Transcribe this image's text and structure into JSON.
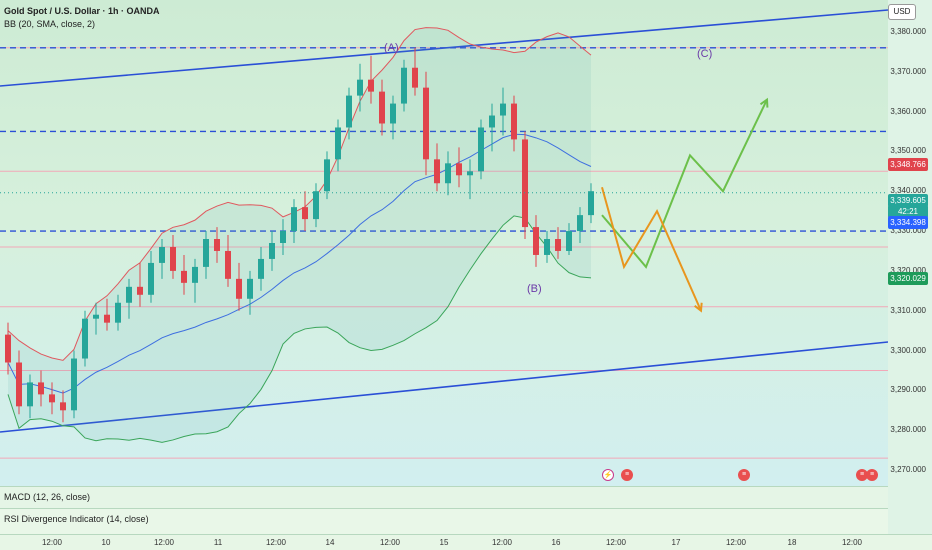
{
  "header": {
    "title": "Gold Spot / U.S. Dollar · 1h · OANDA",
    "indicator": "BB (20, SMA, close, 2)"
  },
  "currency_button": "USD",
  "price_axis": [
    "3,380.000",
    "3,370.000",
    "3,360.000",
    "3,350.000",
    "3,340.000",
    "3,330.000",
    "3,320.000",
    "3,310.000",
    "3,300.000",
    "3,290.000",
    "3,280.000",
    "3,270.000"
  ],
  "price_tags": {
    "upper": {
      "label": "3,348.766",
      "color": "#e0444c"
    },
    "last": {
      "label": "3,339.605",
      "color": "#26a69a"
    },
    "countdown": {
      "label": "42:21",
      "color": "#26a69a"
    },
    "basis": {
      "label": "3,334.398",
      "color": "#2962ff"
    },
    "lower": {
      "label": "3,320.029",
      "color": "#1e9b5a"
    }
  },
  "wave_labels": {
    "a": "(A)",
    "b": "(B)",
    "c": "(C)"
  },
  "panes": {
    "macd": "MACD (12, 26, close)",
    "rsi": "RSI Divergence Indicator (14, close)"
  },
  "time_axis": [
    "12:00",
    "10",
    "12:00",
    "11",
    "12:00",
    "14",
    "12:00",
    "15",
    "12:00",
    "16",
    "12:00",
    "17",
    "12:00",
    "18",
    "12:00"
  ],
  "colors": {
    "up": "#26a69a",
    "down": "#e0444c",
    "channel": "#2a4fd6",
    "bb_upper": "#e0585e",
    "bb_basis": "#3e6fe0",
    "bb_lower": "#3aa55a",
    "proj_green": "#6cc04a",
    "proj_orange": "#e8961e"
  },
  "chart_data": {
    "type": "candlestick",
    "ylim": [
      3266,
      3388
    ],
    "levels": {
      "dashed_blue": [
        3376,
        3355,
        3330
      ],
      "pink_lines": [
        3376,
        3345,
        3326,
        3311,
        3295,
        3273
      ]
    },
    "candles": [
      [
        3304,
        3307,
        3294,
        3297
      ],
      [
        3297,
        3300,
        3284,
        3286
      ],
      [
        3286,
        3294,
        3283,
        3292
      ],
      [
        3292,
        3295,
        3286,
        3289
      ],
      [
        3289,
        3292,
        3284,
        3287
      ],
      [
        3287,
        3290,
        3282,
        3285
      ],
      [
        3285,
        3300,
        3283,
        3298
      ],
      [
        3298,
        3310,
        3296,
        3308
      ],
      [
        3308,
        3312,
        3304,
        3309
      ],
      [
        3309,
        3313,
        3305,
        3307
      ],
      [
        3307,
        3314,
        3305,
        3312
      ],
      [
        3312,
        3318,
        3308,
        3316
      ],
      [
        3316,
        3322,
        3311,
        3314
      ],
      [
        3314,
        3325,
        3312,
        3322
      ],
      [
        3322,
        3328,
        3318,
        3326
      ],
      [
        3326,
        3329,
        3318,
        3320
      ],
      [
        3320,
        3324,
        3314,
        3317
      ],
      [
        3317,
        3323,
        3312,
        3321
      ],
      [
        3321,
        3330,
        3318,
        3328
      ],
      [
        3328,
        3331,
        3322,
        3325
      ],
      [
        3325,
        3329,
        3316,
        3318
      ],
      [
        3318,
        3322,
        3310,
        3313
      ],
      [
        3313,
        3320,
        3309,
        3318
      ],
      [
        3318,
        3326,
        3315,
        3323
      ],
      [
        3323,
        3330,
        3320,
        3327
      ],
      [
        3327,
        3333,
        3324,
        3330
      ],
      [
        3330,
        3338,
        3327,
        3336
      ],
      [
        3336,
        3340,
        3330,
        3333
      ],
      [
        3333,
        3342,
        3331,
        3340
      ],
      [
        3340,
        3350,
        3338,
        3348
      ],
      [
        3348,
        3358,
        3345,
        3356
      ],
      [
        3356,
        3366,
        3353,
        3364
      ],
      [
        3364,
        3372,
        3360,
        3368
      ],
      [
        3368,
        3374,
        3362,
        3365
      ],
      [
        3365,
        3368,
        3354,
        3357
      ],
      [
        3357,
        3364,
        3353,
        3362
      ],
      [
        3362,
        3373,
        3360,
        3371
      ],
      [
        3371,
        3376,
        3364,
        3366
      ],
      [
        3366,
        3370,
        3344,
        3348
      ],
      [
        3348,
        3352,
        3340,
        3342
      ],
      [
        3342,
        3350,
        3339,
        3347
      ],
      [
        3347,
        3351,
        3341,
        3344
      ],
      [
        3344,
        3348,
        3338,
        3345
      ],
      [
        3345,
        3358,
        3343,
        3356
      ],
      [
        3356,
        3362,
        3350,
        3359
      ],
      [
        3359,
        3366,
        3354,
        3362
      ],
      [
        3362,
        3364,
        3350,
        3353
      ],
      [
        3353,
        3355,
        3328,
        3331
      ],
      [
        3331,
        3334,
        3321,
        3324
      ],
      [
        3324,
        3330,
        3322,
        3328
      ],
      [
        3328,
        3331,
        3323,
        3325
      ],
      [
        3325,
        3332,
        3324,
        3330
      ],
      [
        3330,
        3336,
        3327,
        3334
      ],
      [
        3334,
        3342,
        3332,
        3340
      ]
    ],
    "projections": [
      {
        "name": "",
        "color": "#6cc04a",
        "points": [
          [
            54,
            3334
          ],
          [
            58,
            3321
          ],
          [
            62,
            3349
          ],
          [
            65,
            3340
          ],
          [
            69,
            3363
          ]
        ]
      },
      {
        "name": "",
        "color": "#e8961e",
        "points": [
          [
            54,
            3341
          ],
          [
            56,
            3321
          ],
          [
            59,
            3335
          ],
          [
            63,
            3310
          ]
        ]
      }
    ]
  }
}
